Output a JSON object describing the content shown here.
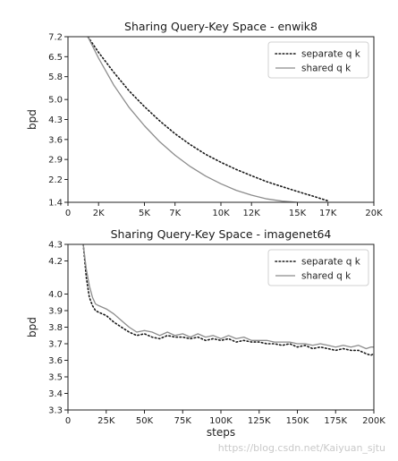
{
  "chart_data": [
    {
      "type": "line",
      "title": "Sharing Query-Key Space - enwik8",
      "xlabel": "",
      "ylabel": "bpd",
      "xlim": [
        0,
        20000
      ],
      "ylim": [
        1.4,
        7.2
      ],
      "xticks": [
        0,
        2000,
        5000,
        7000,
        10000,
        12000,
        15000,
        17000,
        20000
      ],
      "xtick_labels": [
        "0",
        "2K",
        "5K",
        "7K",
        "10K",
        "12K",
        "15K",
        "17K",
        "20K"
      ],
      "yticks": [
        1.4,
        2.2,
        2.9,
        3.6,
        4.3,
        5.0,
        5.8,
        6.5,
        7.2
      ],
      "ytick_labels": [
        "1.4",
        "2.2",
        "2.9",
        "3.6",
        "4.3",
        "5.0",
        "5.8",
        "6.5",
        "7.2"
      ],
      "grid": false,
      "legend_position": "top-right",
      "series": [
        {
          "name": "separate q k",
          "style": "dotted",
          "color": "#1a1a1a",
          "x": [
            1300,
            2000,
            3000,
            4000,
            5000,
            6000,
            7000,
            8000,
            9000,
            10000,
            11000,
            12000,
            13000,
            14000,
            15000,
            16000,
            17000
          ],
          "y": [
            7.2,
            6.65,
            5.95,
            5.3,
            4.75,
            4.25,
            3.8,
            3.42,
            3.08,
            2.8,
            2.55,
            2.33,
            2.12,
            1.95,
            1.78,
            1.62,
            1.45
          ]
        },
        {
          "name": "shared q k",
          "style": "solid",
          "color": "#8c8c8c",
          "x": [
            1300,
            2000,
            3000,
            4000,
            5000,
            6000,
            7000,
            8000,
            9000,
            10000,
            11000,
            12000,
            13000,
            14000,
            15000
          ],
          "y": [
            7.2,
            6.45,
            5.5,
            4.72,
            4.08,
            3.52,
            3.05,
            2.65,
            2.32,
            2.05,
            1.82,
            1.65,
            1.52,
            1.44,
            1.4
          ]
        }
      ]
    },
    {
      "type": "line",
      "title": "Sharing Query-Key Space - imagenet64",
      "xlabel": "steps",
      "ylabel": "bpd",
      "xlim": [
        0,
        200000
      ],
      "ylim": [
        3.3,
        4.3
      ],
      "xticks": [
        0,
        25000,
        50000,
        75000,
        100000,
        125000,
        150000,
        175000,
        200000
      ],
      "xtick_labels": [
        "0",
        "25K",
        "50K",
        "75K",
        "100K",
        "125K",
        "150K",
        "175K",
        "200K"
      ],
      "yticks": [
        3.3,
        3.4,
        3.5,
        3.6,
        3.7,
        3.8,
        3.9,
        4.0,
        4.2,
        4.3
      ],
      "ytick_labels": [
        "3.3",
        "3.4",
        "3.5",
        "3.6",
        "3.7",
        "3.8",
        "3.9",
        "4.0",
        "4.2",
        "4.3"
      ],
      "grid": false,
      "legend_position": "top-right",
      "series": [
        {
          "name": "separate q k",
          "style": "dotted",
          "color": "#1a1a1a",
          "x": [
            10000,
            12000,
            14000,
            16000,
            18000,
            20000,
            25000,
            30000,
            35000,
            40000,
            45000,
            50000,
            55000,
            60000,
            65000,
            70000,
            75000,
            80000,
            85000,
            90000,
            95000,
            100000,
            105000,
            110000,
            115000,
            120000,
            125000,
            130000,
            135000,
            140000,
            145000,
            150000,
            155000,
            160000,
            165000,
            170000,
            175000,
            180000,
            185000,
            190000,
            195000,
            198000,
            200000
          ],
          "y": [
            4.3,
            4.1,
            3.98,
            3.93,
            3.9,
            3.89,
            3.87,
            3.83,
            3.8,
            3.77,
            3.75,
            3.76,
            3.74,
            3.73,
            3.75,
            3.74,
            3.74,
            3.73,
            3.74,
            3.72,
            3.73,
            3.72,
            3.73,
            3.71,
            3.72,
            3.71,
            3.71,
            3.7,
            3.7,
            3.69,
            3.7,
            3.68,
            3.69,
            3.67,
            3.68,
            3.67,
            3.66,
            3.67,
            3.66,
            3.66,
            3.64,
            3.63,
            3.64
          ]
        },
        {
          "name": "shared q k",
          "style": "solid",
          "color": "#8c8c8c",
          "x": [
            10000,
            12000,
            14000,
            16000,
            18000,
            20000,
            25000,
            30000,
            35000,
            40000,
            45000,
            50000,
            55000,
            60000,
            65000,
            70000,
            75000,
            80000,
            85000,
            90000,
            95000,
            100000,
            105000,
            110000,
            115000,
            120000,
            125000,
            130000,
            135000,
            140000,
            145000,
            150000,
            155000,
            160000,
            165000,
            170000,
            175000,
            180000,
            185000,
            190000,
            195000,
            198000,
            200000
          ],
          "y": [
            4.3,
            4.15,
            4.05,
            3.98,
            3.94,
            3.93,
            3.91,
            3.88,
            3.84,
            3.8,
            3.77,
            3.78,
            3.77,
            3.75,
            3.77,
            3.75,
            3.76,
            3.74,
            3.76,
            3.74,
            3.75,
            3.73,
            3.75,
            3.73,
            3.74,
            3.72,
            3.72,
            3.72,
            3.71,
            3.71,
            3.71,
            3.7,
            3.7,
            3.69,
            3.7,
            3.69,
            3.68,
            3.69,
            3.68,
            3.69,
            3.67,
            3.68,
            3.68
          ]
        }
      ]
    }
  ],
  "watermark": "https://blog.csdn.net/Kaiyuan_sjtu"
}
